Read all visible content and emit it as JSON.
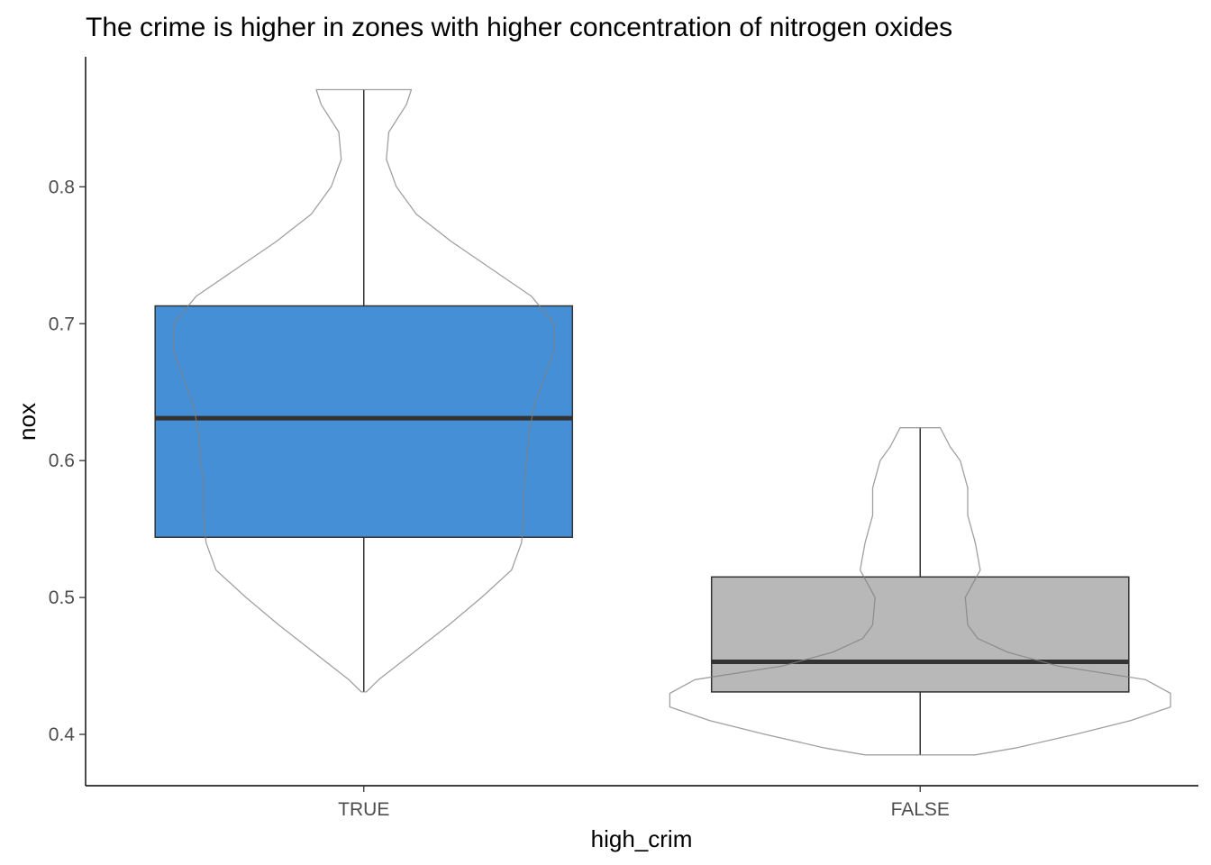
{
  "chart_data": {
    "type": "boxplot-violin",
    "title": "The crime is higher in zones with higher concentration of nitrogen oxides",
    "xlabel": "high_crim",
    "ylabel": "nox",
    "categories": [
      "TRUE",
      "FALSE"
    ],
    "ylim": [
      0.3625,
      0.895
    ],
    "yticks": [
      0.4,
      0.5,
      0.6,
      0.7,
      0.8
    ],
    "ytick_labels": [
      "0.4",
      "0.5",
      "0.6",
      "0.7",
      "0.8"
    ],
    "grid": false,
    "legend": "none",
    "boxes": [
      {
        "category": "TRUE",
        "fill": "#458fd6",
        "min": 0.431,
        "q1": 0.544,
        "median": 0.631,
        "q3": 0.713,
        "max": 0.871,
        "violin_density": [
          [
            0.431,
            0.01
          ],
          [
            0.44,
            0.06
          ],
          [
            0.46,
            0.2
          ],
          [
            0.48,
            0.34
          ],
          [
            0.5,
            0.47
          ],
          [
            0.52,
            0.59
          ],
          [
            0.54,
            0.63
          ],
          [
            0.56,
            0.64
          ],
          [
            0.58,
            0.64
          ],
          [
            0.6,
            0.65
          ],
          [
            0.62,
            0.66
          ],
          [
            0.64,
            0.68
          ],
          [
            0.66,
            0.72
          ],
          [
            0.68,
            0.76
          ],
          [
            0.7,
            0.76
          ],
          [
            0.72,
            0.67
          ],
          [
            0.74,
            0.51
          ],
          [
            0.76,
            0.35
          ],
          [
            0.78,
            0.21
          ],
          [
            0.8,
            0.13
          ],
          [
            0.82,
            0.09
          ],
          [
            0.84,
            0.1
          ],
          [
            0.86,
            0.17
          ],
          [
            0.871,
            0.19
          ]
        ]
      },
      {
        "category": "FALSE",
        "fill": "#b8b8b8",
        "min": 0.385,
        "q1": 0.431,
        "median": 0.453,
        "q3": 0.515,
        "max": 0.624,
        "violin_density": [
          [
            0.385,
            0.22
          ],
          [
            0.39,
            0.38
          ],
          [
            0.4,
            0.62
          ],
          [
            0.41,
            0.84
          ],
          [
            0.42,
            1.0
          ],
          [
            0.43,
            1.0
          ],
          [
            0.44,
            0.9
          ],
          [
            0.45,
            0.55
          ],
          [
            0.46,
            0.35
          ],
          [
            0.47,
            0.23
          ],
          [
            0.48,
            0.19
          ],
          [
            0.5,
            0.18
          ],
          [
            0.52,
            0.24
          ],
          [
            0.54,
            0.22
          ],
          [
            0.56,
            0.19
          ],
          [
            0.58,
            0.19
          ],
          [
            0.6,
            0.16
          ],
          [
            0.61,
            0.12
          ],
          [
            0.624,
            0.08
          ]
        ]
      }
    ]
  }
}
